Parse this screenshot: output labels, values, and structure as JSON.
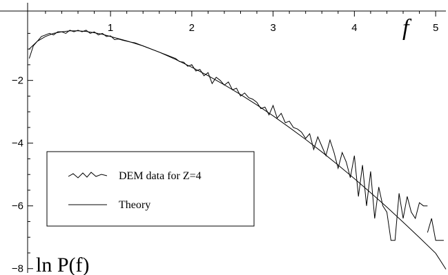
{
  "chart_data": {
    "type": "line",
    "xlabel": "f",
    "ylabel": "ln P(f)",
    "xlim": [
      -0.02,
      5.05
    ],
    "ylim": [
      -8.05,
      0.3
    ],
    "x_ticks": [
      1,
      2,
      3,
      4,
      5
    ],
    "x_tick_labels": [
      "1",
      "2",
      "3",
      "4",
      "5"
    ],
    "y_ticks": [
      -2,
      -4,
      -6,
      -8
    ],
    "y_tick_labels": [
      "-2",
      "-4",
      "-6",
      "-8"
    ],
    "legend": {
      "position": "lower-left",
      "entries": [
        {
          "label": "DEM data for Z=4",
          "marker": "zigzag"
        },
        {
          "label": "Theory",
          "marker": "line"
        }
      ]
    },
    "series": [
      {
        "name": "DEM data for Z=4",
        "segments": [
          [
            [
              0.0,
              -1.3
            ],
            [
              0.05,
              -0.9
            ],
            [
              0.1,
              -0.75
            ],
            [
              0.15,
              -0.6
            ],
            [
              0.2,
              -0.55
            ],
            [
              0.25,
              -0.5
            ],
            [
              0.3,
              -0.55
            ],
            [
              0.35,
              -0.45
            ],
            [
              0.4,
              -0.45
            ],
            [
              0.45,
              -0.5
            ],
            [
              0.5,
              -0.4
            ],
            [
              0.55,
              -0.45
            ],
            [
              0.6,
              -0.4
            ],
            [
              0.65,
              -0.45
            ],
            [
              0.7,
              -0.4
            ],
            [
              0.75,
              -0.5
            ],
            [
              0.8,
              -0.45
            ],
            [
              0.85,
              -0.55
            ],
            [
              0.9,
              -0.5
            ],
            [
              0.95,
              -0.6
            ],
            [
              1.0,
              -0.58
            ],
            [
              1.05,
              -0.7
            ],
            [
              1.1,
              -0.68
            ],
            [
              1.15,
              -0.72
            ],
            [
              1.2,
              -0.75
            ],
            [
              1.25,
              -0.78
            ],
            [
              1.3,
              -0.8
            ],
            [
              1.35,
              -0.85
            ],
            [
              1.4,
              -0.9
            ],
            [
              1.45,
              -0.95
            ],
            [
              1.5,
              -1.0
            ],
            [
              1.55,
              -1.05
            ],
            [
              1.6,
              -1.1
            ],
            [
              1.65,
              -1.15
            ],
            [
              1.7,
              -1.2
            ],
            [
              1.75,
              -1.25
            ],
            [
              1.8,
              -1.3
            ],
            [
              1.85,
              -1.4
            ],
            [
              1.9,
              -1.42
            ],
            [
              1.95,
              -1.55
            ],
            [
              2.0,
              -1.5
            ],
            [
              2.05,
              -1.7
            ],
            [
              2.1,
              -1.65
            ],
            [
              2.15,
              -1.85
            ],
            [
              2.2,
              -1.75
            ],
            [
              2.25,
              -2.1
            ],
            [
              2.3,
              -1.9
            ],
            [
              2.35,
              -2.0
            ],
            [
              2.4,
              -2.15
            ],
            [
              2.45,
              -2.05
            ],
            [
              2.5,
              -2.3
            ],
            [
              2.55,
              -2.25
            ],
            [
              2.6,
              -2.5
            ],
            [
              2.65,
              -2.4
            ],
            [
              2.7,
              -2.55
            ],
            [
              2.75,
              -2.6
            ],
            [
              2.8,
              -2.7
            ],
            [
              2.85,
              -2.9
            ],
            [
              2.9,
              -2.85
            ],
            [
              2.95,
              -3.1
            ],
            [
              3.0,
              -2.8
            ],
            [
              3.05,
              -3.2
            ],
            [
              3.1,
              -3.05
            ],
            [
              3.15,
              -3.35
            ],
            [
              3.2,
              -3.3
            ],
            [
              3.25,
              -3.5
            ],
            [
              3.3,
              -3.55
            ],
            [
              3.35,
              -3.65
            ],
            [
              3.4,
              -3.85
            ],
            [
              3.45,
              -3.7
            ],
            [
              3.5,
              -4.2
            ],
            [
              3.55,
              -3.8
            ],
            [
              3.6,
              -4.1
            ],
            [
              3.65,
              -4.4
            ],
            [
              3.7,
              -3.9
            ],
            [
              3.75,
              -4.3
            ],
            [
              3.8,
              -4.8
            ],
            [
              3.85,
              -4.3
            ],
            [
              3.9,
              -4.6
            ],
            [
              3.95,
              -5.1
            ],
            [
              4.0,
              -4.4
            ],
            [
              4.05,
              -5.7
            ],
            [
              4.1,
              -4.7
            ],
            [
              4.15,
              -6.0
            ],
            [
              4.2,
              -4.9
            ],
            [
              4.25,
              -6.4
            ],
            [
              4.3,
              -5.4
            ],
            [
              4.35,
              -6.0
            ],
            [
              4.4,
              -6.2
            ],
            [
              4.45,
              -7.1
            ],
            [
              4.5,
              -7.1
            ],
            [
              4.55,
              -5.6
            ],
            [
              4.6,
              -6.4
            ],
            [
              4.65,
              -5.7
            ],
            [
              4.7,
              -6.2
            ],
            [
              4.75,
              -6.4
            ],
            [
              4.8,
              -5.9
            ],
            [
              4.85,
              -6.0
            ],
            [
              4.9,
              -6.0
            ]
          ],
          [
            [
              4.9,
              -6.85
            ],
            [
              4.95,
              -6.4
            ],
            [
              5.0,
              -7.1
            ],
            [
              5.1,
              -7.1
            ]
          ],
          [
            [
              5.2,
              -7.25
            ],
            [
              5.25,
              -7.25
            ]
          ]
        ]
      },
      {
        "name": "Theory",
        "x": [
          0.0,
          0.1,
          0.2,
          0.3,
          0.4,
          0.5,
          0.6,
          0.7,
          0.8,
          0.9,
          1.0,
          1.2,
          1.4,
          1.6,
          1.8,
          2.0,
          2.2,
          2.4,
          2.6,
          2.8,
          3.0,
          3.2,
          3.4,
          3.6,
          3.8,
          4.0,
          4.2,
          4.4,
          4.6,
          4.8,
          5.0,
          5.2
        ],
        "y": [
          -1.0,
          -0.75,
          -0.6,
          -0.5,
          -0.45,
          -0.42,
          -0.42,
          -0.44,
          -0.48,
          -0.53,
          -0.6,
          -0.74,
          -0.9,
          -1.1,
          -1.33,
          -1.58,
          -1.85,
          -2.14,
          -2.45,
          -2.78,
          -3.13,
          -3.5,
          -3.88,
          -4.28,
          -4.7,
          -5.13,
          -5.58,
          -6.04,
          -6.52,
          -7.01,
          -7.51,
          -8.02
        ]
      }
    ]
  }
}
